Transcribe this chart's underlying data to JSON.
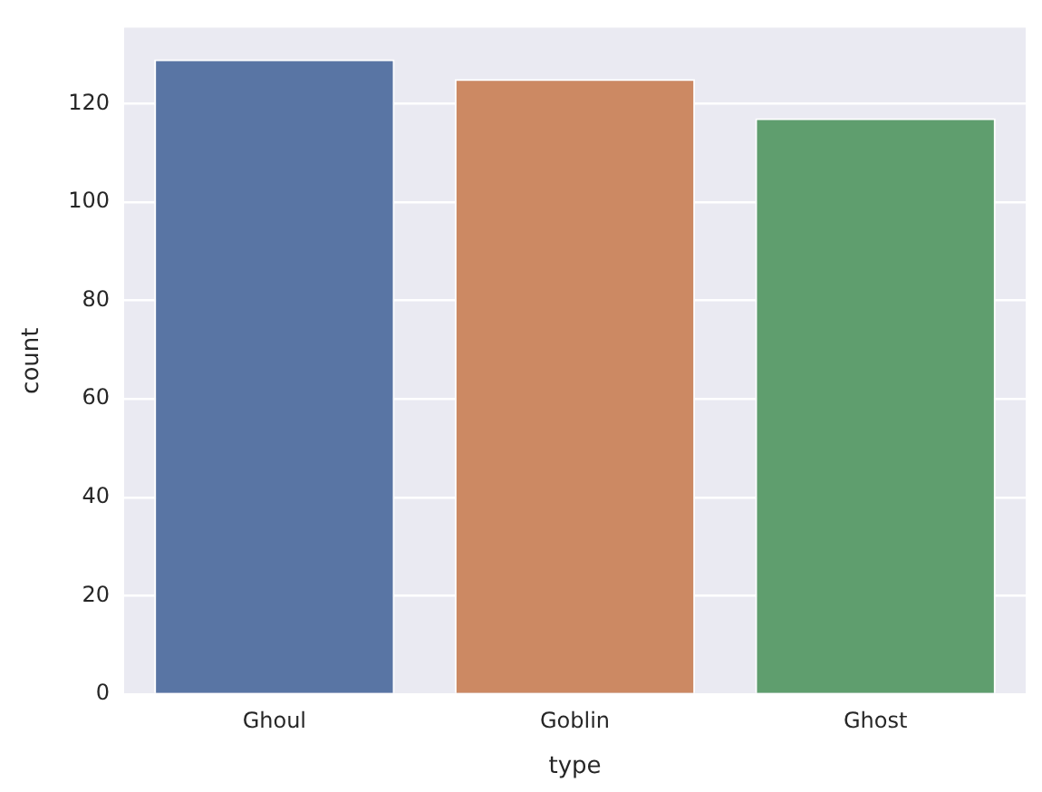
{
  "chart_data": {
    "type": "bar",
    "xlabel": "type",
    "ylabel": "count",
    "categories": [
      "Ghoul",
      "Goblin",
      "Ghost"
    ],
    "values": [
      129,
      125,
      117
    ],
    "colors": [
      "#5975a4",
      "#cc8963",
      "#5f9e6e"
    ],
    "ylim": [
      0,
      135.45
    ],
    "yticks": [
      0,
      20,
      40,
      60,
      80,
      100,
      120
    ],
    "grid": "y",
    "legend": false
  }
}
